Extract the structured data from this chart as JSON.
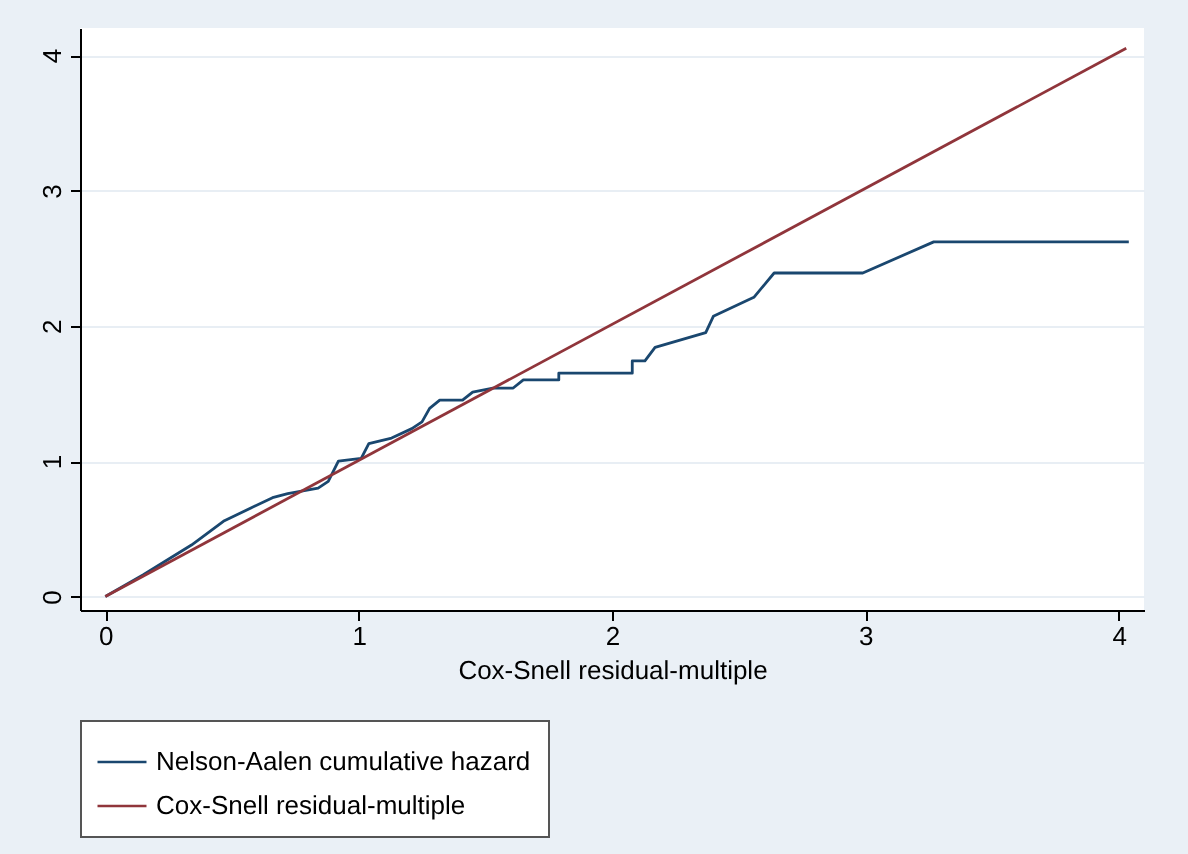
{
  "chart_data": {
    "type": "line",
    "xlabel": "Cox-Snell residual-multiple",
    "xlim": [
      -0.1,
      4.1
    ],
    "xticks": [
      0,
      1,
      2,
      3,
      4
    ],
    "ylim": [
      -0.1,
      4.2
    ],
    "yticks": [
      0,
      1,
      2,
      3,
      4
    ],
    "grid": "y",
    "legend": "bottom",
    "marker": "none",
    "line_style": "solid",
    "series": [
      {
        "name": "Nelson-Aalen cumulative hazard",
        "color": "#1a476f",
        "x": [
          0,
          0.15,
          0.34,
          0.47,
          0.66,
          0.72,
          0.84,
          0.88,
          0.92,
          1.01,
          1.04,
          1.13,
          1.21,
          1.25,
          1.28,
          1.32,
          1.41,
          1.45,
          1.53,
          1.61,
          1.65,
          1.79,
          1.79,
          2.08,
          2.08,
          2.13,
          2.17,
          2.37,
          2.4,
          2.56,
          2.64,
          2.99,
          3.27,
          4.04
        ],
        "values": [
          0,
          0.16,
          0.38,
          0.56,
          0.73,
          0.76,
          0.8,
          0.85,
          1.0,
          1.02,
          1.13,
          1.17,
          1.24,
          1.29,
          1.39,
          1.45,
          1.45,
          1.51,
          1.54,
          1.54,
          1.6,
          1.6,
          1.65,
          1.65,
          1.74,
          1.74,
          1.84,
          1.95,
          2.07,
          2.21,
          2.39,
          2.39,
          2.62,
          2.62
        ]
      },
      {
        "name": "Cox-Snell residual-multiple",
        "color": "#90353b",
        "x": [
          0,
          4.03
        ],
        "values": [
          0,
          4.05
        ]
      }
    ]
  }
}
